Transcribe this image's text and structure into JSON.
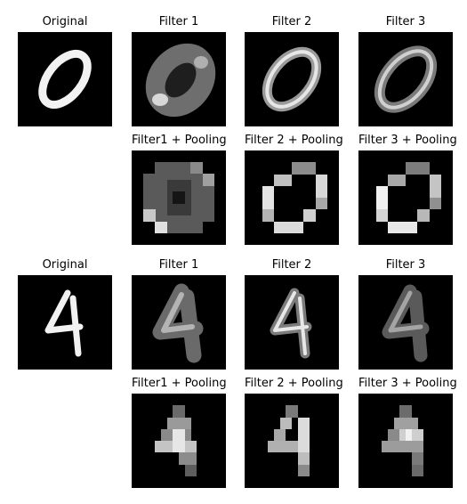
{
  "panels": {
    "p1": {
      "title": "Original"
    },
    "p2": {
      "title": "Filter 1"
    },
    "p3": {
      "title": "Filter 2"
    },
    "p4": {
      "title": "Filter 3"
    },
    "p5": {
      "title": "Filter1 + Pooling"
    },
    "p6": {
      "title": "Filter 2 + Pooling"
    },
    "p7": {
      "title": "Filter 3 + Pooling"
    },
    "p8": {
      "title": "Original"
    },
    "p9": {
      "title": "Filter 1"
    },
    "p10": {
      "title": "Filter 2"
    },
    "p11": {
      "title": "Filter 3"
    },
    "p12": {
      "title": "Filter1 + Pooling"
    },
    "p13": {
      "title": "Filter 2 + Pooling"
    },
    "p14": {
      "title": "Filter 3 + Pooling"
    }
  }
}
